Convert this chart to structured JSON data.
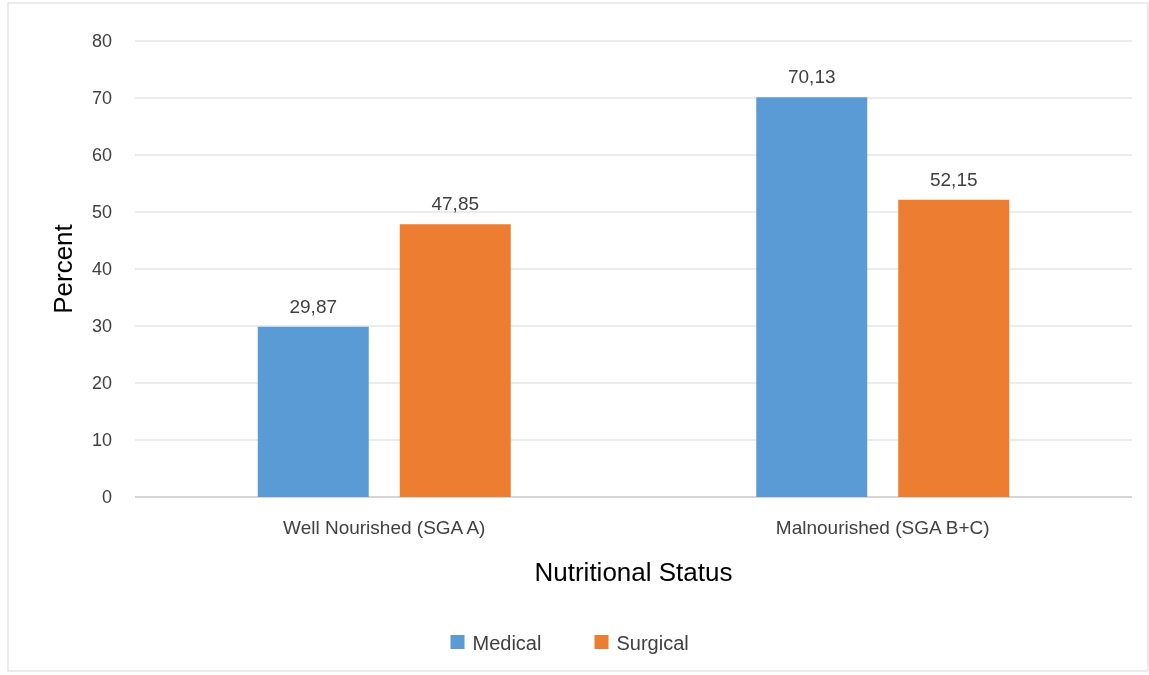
{
  "chart_data": {
    "type": "bar",
    "xlabel": "Nutritional Status",
    "ylabel": "Percent",
    "categories": [
      "Well Nourished (SGA A)",
      "Malnourished (SGA B+C)"
    ],
    "series": [
      {
        "name": "Medical",
        "color": "#5b9bd5",
        "values": [
          29.87,
          70.13
        ],
        "value_labels": [
          "29,87",
          "70,13"
        ]
      },
      {
        "name": "Surgical",
        "color": "#ed7d31",
        "values": [
          47.85,
          52.15
        ],
        "value_labels": [
          "47,85",
          "52,15"
        ]
      }
    ],
    "ylim": [
      0,
      80
    ],
    "yticks": [
      0,
      10,
      20,
      30,
      40,
      50,
      60,
      70,
      80
    ],
    "grid": "y",
    "legend": "bottom"
  }
}
